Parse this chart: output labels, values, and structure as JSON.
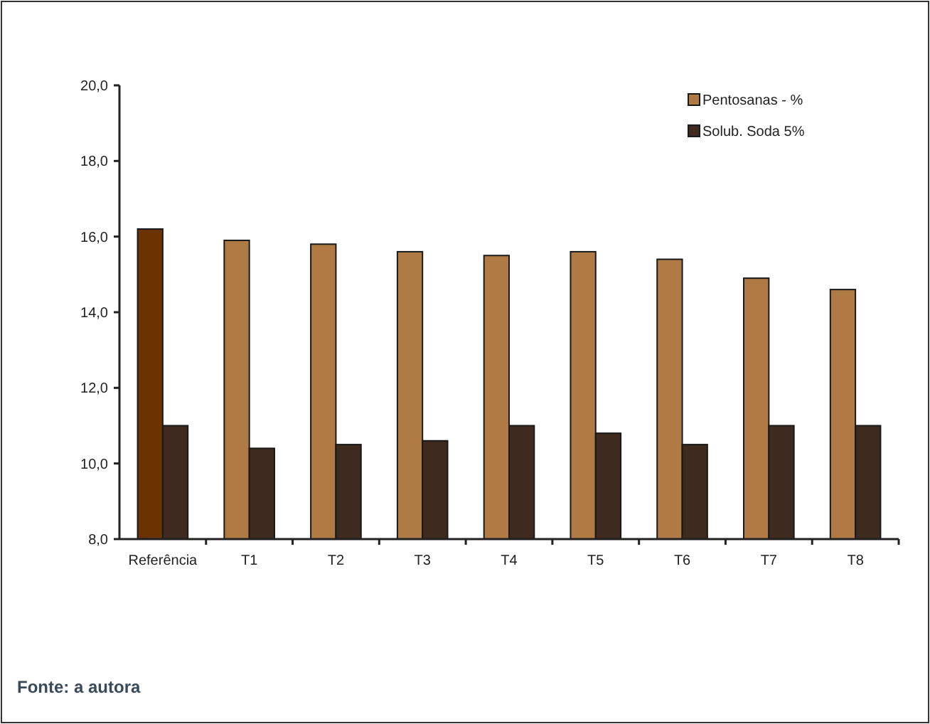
{
  "chart_data": {
    "type": "bar",
    "categories": [
      "Referência",
      "T1",
      "T2",
      "T3",
      "T4",
      "T5",
      "T6",
      "T7",
      "T8"
    ],
    "series": [
      {
        "name": "Pentosanas - %",
        "color": "#b07a45",
        "colors": [
          "#6b3300",
          "#b07a45",
          "#b07a45",
          "#b07a45",
          "#b07a45",
          "#b07a45",
          "#b07a45",
          "#b07a45",
          "#b07a45"
        ],
        "values": [
          16.2,
          15.9,
          15.8,
          15.6,
          15.5,
          15.6,
          15.4,
          14.9,
          14.6
        ]
      },
      {
        "name": "Solub. Soda 5%",
        "color": "#3e2a1f",
        "values": [
          11.0,
          10.4,
          10.5,
          10.6,
          11.0,
          10.8,
          10.5,
          11.0,
          11.0
        ]
      }
    ],
    "ylim": [
      8,
      20
    ],
    "yticks": [
      {
        "value": 8,
        "label": "8,0"
      },
      {
        "value": 10,
        "label": "10,0"
      },
      {
        "value": 12,
        "label": "12,0"
      },
      {
        "value": 14,
        "label": "14,0"
      },
      {
        "value": 16,
        "label": "16,0"
      },
      {
        "value": 18,
        "label": "18,0"
      },
      {
        "value": 20,
        "label": "20,0"
      }
    ],
    "legend": "top right",
    "grid": false,
    "annotations": [
      "Fonte: a autora"
    ]
  }
}
